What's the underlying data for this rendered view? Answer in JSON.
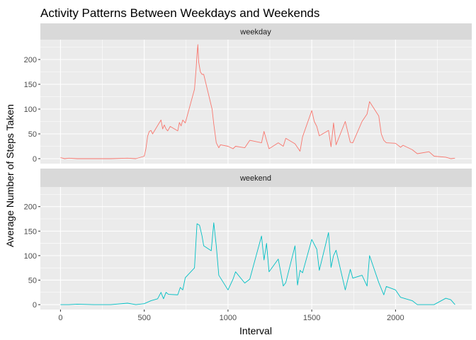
{
  "chart_data": {
    "type": "line",
    "title": "Activity Patterns Between Weekdays and Weekends",
    "xlabel": "Interval",
    "ylabel": "Average Number of Steps Taken",
    "xlim": [
      -120,
      2455
    ],
    "ylim": [
      -10,
      240
    ],
    "x_ticks": [
      0,
      500,
      1000,
      1500,
      2000
    ],
    "y_ticks": [
      0,
      50,
      100,
      150,
      200
    ],
    "grid": true,
    "legend": "none",
    "facets": [
      {
        "name": "weekday",
        "color": "#F8766D",
        "x": [
          0,
          25,
          50,
          100,
          150,
          200,
          300,
          400,
          450,
          500,
          510,
          520,
          530,
          540,
          550,
          600,
          610,
          620,
          630,
          640,
          655,
          700,
          710,
          720,
          730,
          745,
          800,
          810,
          815,
          820,
          825,
          835,
          845,
          855,
          905,
          915,
          930,
          945,
          955,
          1000,
          1030,
          1045,
          1100,
          1130,
          1200,
          1215,
          1230,
          1245,
          1300,
          1330,
          1345,
          1400,
          1430,
          1445,
          1500,
          1515,
          1530,
          1545,
          1600,
          1615,
          1630,
          1645,
          1700,
          1730,
          1745,
          1800,
          1830,
          1845,
          1900,
          1915,
          1930,
          1945,
          2000,
          2030,
          2045,
          2100,
          2130,
          2200,
          2230,
          2300,
          2330,
          2355
        ],
        "y": [
          2,
          0,
          1,
          0,
          0,
          0,
          0,
          1,
          0,
          5,
          20,
          45,
          55,
          57,
          50,
          78,
          60,
          68,
          60,
          56,
          65,
          56,
          73,
          66,
          78,
          72,
          140,
          183,
          210,
          230,
          195,
          175,
          170,
          170,
          100,
          70,
          32,
          22,
          28,
          25,
          20,
          25,
          22,
          37,
          32,
          55,
          37,
          20,
          32,
          25,
          41,
          30,
          15,
          44,
          97,
          75,
          65,
          46,
          57,
          24,
          72,
          28,
          75,
          33,
          32,
          75,
          90,
          115,
          86,
          50,
          37,
          32,
          31,
          23,
          27,
          18,
          10,
          14,
          5,
          3,
          0,
          1
        ]
      },
      {
        "name": "weekend",
        "color": "#00BFC4",
        "x": [
          0,
          50,
          100,
          200,
          300,
          400,
          450,
          500,
          540,
          560,
          580,
          600,
          615,
          630,
          645,
          700,
          715,
          730,
          745,
          800,
          815,
          830,
          845,
          855,
          900,
          915,
          930,
          945,
          1000,
          1030,
          1045,
          1100,
          1130,
          1200,
          1215,
          1230,
          1245,
          1300,
          1330,
          1345,
          1400,
          1415,
          1430,
          1445,
          1500,
          1530,
          1545,
          1600,
          1615,
          1630,
          1645,
          1700,
          1730,
          1745,
          1800,
          1830,
          1845,
          1900,
          1930,
          1945,
          2000,
          2030,
          2100,
          2130,
          2200,
          2230,
          2300,
          2330,
          2355
        ],
        "y": [
          0,
          0,
          1,
          0,
          0,
          3,
          0,
          2,
          8,
          10,
          12,
          25,
          12,
          25,
          21,
          20,
          35,
          30,
          55,
          75,
          165,
          162,
          140,
          120,
          110,
          167,
          120,
          60,
          30,
          52,
          67,
          44,
          52,
          140,
          91,
          125,
          67,
          93,
          38,
          45,
          120,
          40,
          70,
          65,
          133,
          113,
          70,
          147,
          76,
          100,
          111,
          30,
          72,
          54,
          60,
          38,
          100,
          45,
          20,
          37,
          30,
          15,
          8,
          0,
          0,
          0,
          13,
          10,
          0
        ]
      }
    ]
  }
}
